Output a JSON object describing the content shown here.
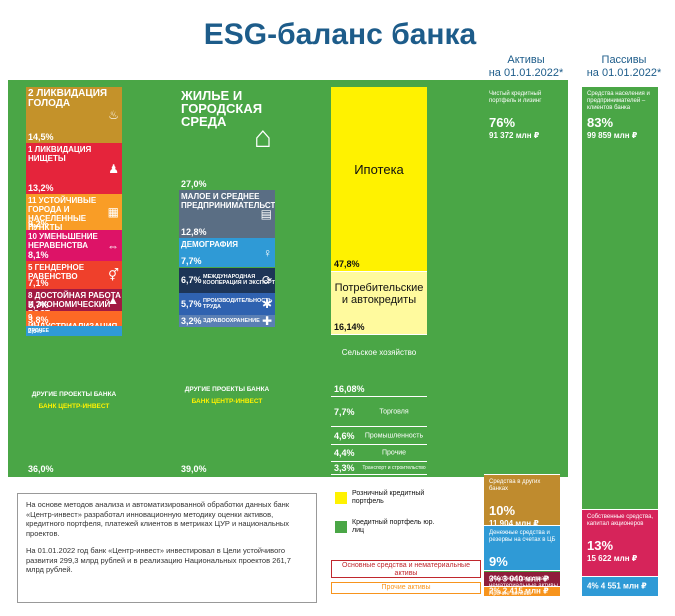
{
  "title": "ESG-баланс банка",
  "headers": {
    "assets": [
      "Активы",
      "на 01.01.2022*"
    ],
    "liabilities": [
      "Пассивы",
      "на 01.01.2022*"
    ]
  },
  "colors": {
    "green": "#4aa646",
    "yellow": "#fff200",
    "gold": "#bf8b2e",
    "blue": "#2f9ad6",
    "dark_red": "#8f1d3b",
    "orange": "#f7941d"
  },
  "chart_data": [
    {
      "type": "bar",
      "name": "sdg-column",
      "segments": [
        {
          "label": "Ликвидация голода",
          "num": "2",
          "value": 14.5,
          "display": "14,5%",
          "color": "#c4922a",
          "icon": "bowl-icon"
        },
        {
          "label": "Ликвидация нищеты",
          "num": "1",
          "value": 13.2,
          "display": "13,2%",
          "color": "#e5243b",
          "icon": "family-icon"
        },
        {
          "label": "Устойчивые города и населенные пункты",
          "num": "11",
          "value": 9.2,
          "display": "9,2%",
          "color": "#f99d26",
          "icon": "city-icon"
        },
        {
          "label": "Уменьшение неравенства",
          "num": "10",
          "value": 8.1,
          "display": "8,1%",
          "color": "#dd1367",
          "icon": "equality-icon"
        },
        {
          "label": "Гендерное равенство",
          "num": "5",
          "value": 7.1,
          "display": "7,1%",
          "color": "#ef402b",
          "icon": "gender-icon"
        },
        {
          "label": "Достойная работа и экономический рост",
          "num": "8",
          "value": 5.7,
          "display": "5,7%",
          "color": "#a21942",
          "icon": "growth-icon"
        },
        {
          "label": "Индустриализация, инновации и инфраструктура",
          "num": "9",
          "value": 3.8,
          "display": "3,8%",
          "color": "#fd6925",
          "icon": ""
        },
        {
          "label": "Прочее",
          "num": "",
          "value": 2.6,
          "display": "2,6%",
          "color": "#2f9ad6",
          "icon": ""
        },
        {
          "label": "Другие проекты банка",
          "num": "",
          "value": 36.0,
          "display": "36,0%",
          "color": "#4aa646",
          "icon": ""
        }
      ]
    },
    {
      "type": "bar",
      "name": "national-projects-column",
      "segments": [
        {
          "label": "Жилье и городская среда",
          "value": 27.0,
          "display": "27,0%",
          "color": "#4aa646",
          "icon": "house-icon"
        },
        {
          "label": "Малое и среднее предпринимательство",
          "value": 12.8,
          "display": "12,8%",
          "color": "#5a6e84",
          "icon": "business-icon"
        },
        {
          "label": "Демография",
          "value": 7.7,
          "display": "7,7%",
          "color": "#2f9ad6",
          "icon": "demography-icon"
        },
        {
          "label": "Международная кооперация и экспорт",
          "value": 6.7,
          "display": "6,7%",
          "color": "#1d3557",
          "icon": "export-icon"
        },
        {
          "label": "Производительность труда",
          "value": 5.7,
          "display": "5,7%",
          "color": "#2f62b0",
          "icon": "productivity-icon"
        },
        {
          "label": "Здравоохранение",
          "value": 3.2,
          "display": "3,2%",
          "color": "#5a7fb4",
          "icon": "health-icon"
        },
        {
          "label": "Другие проекты банка",
          "value": 39.0,
          "display": "39,0%",
          "color": "#4aa646",
          "icon": ""
        }
      ]
    },
    {
      "type": "bar",
      "name": "loan-portfolio-column",
      "segments": [
        {
          "label": "Ипотека",
          "value": 47.8,
          "display": "47,8%",
          "color": "#fff200"
        },
        {
          "label": "Потребительские и автокредиты",
          "value": 16.14,
          "display": "16,14%",
          "color": "#fffa9e"
        },
        {
          "label": "Сельское хозяйство",
          "value": 16.08,
          "display": "16,08%",
          "color": "#4aa646"
        },
        {
          "label": "Торговля",
          "value": 7.7,
          "display": "7,7%",
          "color": "#4aa646"
        },
        {
          "label": "Промышленность",
          "value": 4.6,
          "display": "4,6%",
          "color": "#4aa646"
        },
        {
          "label": "Прочие",
          "value": 4.4,
          "display": "4,4%",
          "color": "#4aa646"
        },
        {
          "label": "Транспорт и строительство",
          "value": 3.3,
          "display": "3,3%",
          "color": "#4aa646"
        }
      ]
    },
    {
      "type": "bar",
      "name": "assets-column",
      "segments": [
        {
          "label": "Чистый кредитный портфель и лизинг",
          "pct": "76%",
          "amount": "91 372 млн ₽",
          "value": 76,
          "color": "#4aa646"
        },
        {
          "label": "Средства в других банках",
          "pct": "10%",
          "amount": "11 904 млн ₽",
          "value": 10,
          "color": "#bf8b2e"
        },
        {
          "label": "Денежные средства и резервы на счетах в ЦБ",
          "pct": "9%",
          "amount": "11 300 млн ₽",
          "value": 9,
          "color": "#2f9ad6"
        },
        {
          "label": "Основные средства и нематериальные активы",
          "pct": "3%",
          "amount": "3 040 млн ₽",
          "value": 3,
          "color": "#8f1d3b"
        },
        {
          "label": "Прочие активы",
          "pct": "2%",
          "amount": "2 415 млн ₽",
          "value": 2,
          "color": "#f7941d"
        }
      ]
    },
    {
      "type": "bar",
      "name": "liabilities-column",
      "segments": [
        {
          "label": "Средства населения и предпринимателей – клиентов банка",
          "pct": "83%",
          "amount": "99 859 млн ₽",
          "value": 83,
          "color": "#4aa646"
        },
        {
          "label": "Собственные средства, капитал акционеров",
          "pct": "13%",
          "amount": "15 622 млн ₽",
          "value": 13,
          "color": "#d6245a"
        },
        {
          "label": "",
          "pct": "4%",
          "amount": "4 551 млн ₽",
          "value": 4,
          "color": "#2f9ad6"
        }
      ]
    }
  ],
  "columns": {
    "sdg_footer": {
      "text": "ДРУГИЕ ПРОЕКТЫ БАНКА",
      "logo": "БАНК ЦЕНТР-ИНВЕСТ"
    },
    "np_footer": {
      "text": "ДРУГИЕ ПРОЕКТЫ БАНКА",
      "logo": "БАНК ЦЕНТР-ИНВЕСТ"
    }
  },
  "legend": {
    "retail": "Розничный кредитный портфель",
    "corporate": "Кредитный портфель юр. лиц",
    "fixed_assets": "Основные средства и нематериальные активы",
    "other_assets": "Прочие активы"
  },
  "note": {
    "p1": "На основе методов анализа и автоматизированной обработки данных банк «Центр-инвест» разработал инновационную методику оценки активов, кредитного портфеля, платежей клиентов в метриках ЦУР и национальных проектов.",
    "p2": "На 01.01.2022 год банк «Центр-инвест» инвестировал в Цели устойчивого развития 299,3 млрд рублей и в реализацию Национальных проектов 261,7 млрд рублей."
  }
}
